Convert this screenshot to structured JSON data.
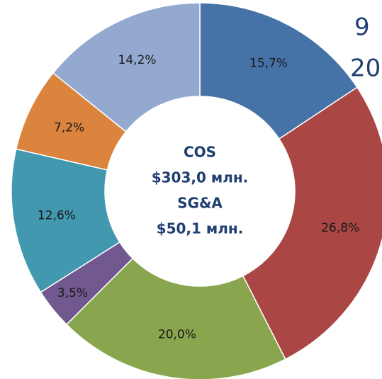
{
  "chart_data": {
    "type": "donut",
    "categories": [
      null,
      null,
      null,
      null,
      null,
      null,
      null
    ],
    "values": [
      15.7,
      26.8,
      20.0,
      3.5,
      12.6,
      7.2,
      14.2
    ],
    "value_labels": [
      "15,7%",
      "26,8%",
      "20,0%",
      "3,5%",
      "12,6%",
      "7,2%",
      "14,2%"
    ],
    "colors": [
      "#4572a7",
      "#aa4643",
      "#89a54e",
      "#71588f",
      "#4198af",
      "#db843d",
      "#93a9cf"
    ],
    "center_labels": [
      "COS",
      "$303,0 млн.",
      "SG&A",
      "$50,1 млн."
    ],
    "annotations": [
      "9",
      "20"
    ]
  }
}
